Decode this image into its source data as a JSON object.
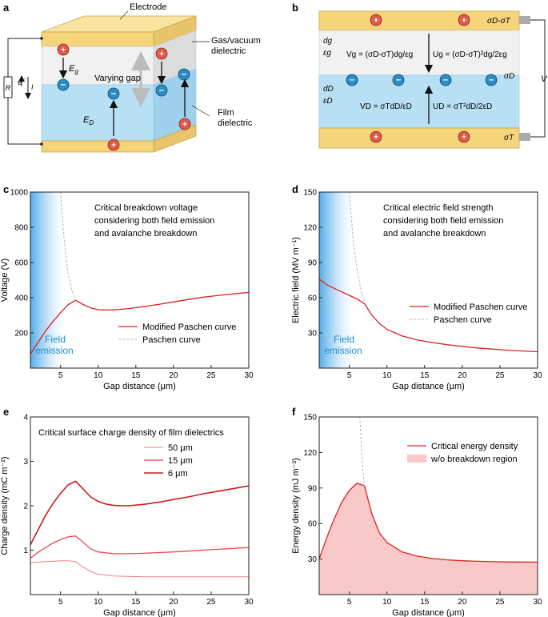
{
  "panel_labels": [
    "a",
    "b",
    "c",
    "d",
    "e",
    "f"
  ],
  "diagram_a": {
    "electrode": "Electrode",
    "gas_dielectric": [
      "Gas/vacuum",
      "dielectric"
    ],
    "film_dielectric": [
      "Film",
      "dielectric"
    ],
    "varying_gap": "Varying gap",
    "e_gas": "E",
    "e_gas_sub": "g",
    "e_film": "E",
    "e_film_sub": "D",
    "resistor": "R",
    "electron": "e",
    "current": "I"
  },
  "diagram_b": {
    "sigma_top": "σD-σT",
    "sigma_mid": "σD",
    "sigma_bot": "σT",
    "d_g": "dg",
    "eps_g": "εg",
    "d_D": "dD",
    "eps_D": "εD",
    "v_g": "Vg = (σD-σT)dg/εg",
    "u_g": "Ug = (σD-σT)²dg/2εg",
    "v_D": "VD = σTdD/εD",
    "u_D": "UD = σT²dD/2εD",
    "v_ext": "V"
  },
  "colors": {
    "electrode": "#f5d47a",
    "gas": "#ececec",
    "film": "#b8e0f5",
    "pos_charge": "#e05a4a",
    "neg_charge": "#2c8cc4",
    "curve": "#e02020",
    "paschen": "#b8b8b8",
    "field_emission": "#1a8fd0",
    "safe_region": "#f9c9c9"
  },
  "chart_data": [
    {
      "type": "line",
      "panel": "c",
      "title": [
        "Critical breakdown voltage",
        "considering both field emission",
        "and avalanche breakdown"
      ],
      "xlabel": "Gap distance (μm)",
      "ylabel": "Voltage (V)",
      "xlim": [
        1,
        30
      ],
      "ylim": [
        0,
        1000
      ],
      "xticks": [
        5,
        10,
        15,
        20,
        25,
        30
      ],
      "yticks": [
        200,
        400,
        600,
        800,
        1000
      ],
      "yticklabels": [
        "200",
        "400",
        "600",
        "800",
        "1000"
      ],
      "region_label": [
        "Field",
        "emission"
      ],
      "series": [
        {
          "name": "Modified Paschen curve",
          "style": "solid",
          "x": [
            1,
            2,
            3,
            4,
            5,
            6,
            7,
            8,
            9,
            10,
            11,
            12,
            13,
            14,
            16,
            18,
            20,
            22,
            24,
            26,
            28,
            30
          ],
          "y": [
            80,
            145,
            210,
            265,
            315,
            360,
            385,
            362,
            342,
            332,
            330,
            331,
            334,
            338,
            349,
            362,
            376,
            390,
            403,
            413,
            422,
            430
          ]
        },
        {
          "name": "Paschen curve",
          "style": "dashed",
          "x": [
            5,
            5.5,
            6,
            6.5,
            7
          ],
          "y": [
            1000,
            720,
            540,
            440,
            385
          ]
        }
      ]
    },
    {
      "type": "line",
      "panel": "d",
      "title": [
        "Critical electric field strength",
        "considering both field emission",
        "and avalanche breakdown"
      ],
      "xlabel": "Gap distance (μm)",
      "ylabel": "Electric field (MV m⁻¹)",
      "xlim": [
        1,
        30
      ],
      "ylim": [
        0,
        150
      ],
      "xticks": [
        5,
        10,
        15,
        20,
        25,
        30
      ],
      "yticks": [
        30,
        60,
        90,
        120,
        150
      ],
      "yticklabels": [
        "30",
        "60",
        "90",
        "120",
        "150"
      ],
      "region_label": [
        "Field",
        "emission"
      ],
      "series": [
        {
          "name": "Modified Paschen curve",
          "style": "solid",
          "x": [
            1,
            2,
            3,
            4,
            5,
            6,
            7,
            8,
            9,
            10,
            12,
            14,
            16,
            18,
            20,
            22,
            24,
            26,
            28,
            30
          ],
          "y": [
            76,
            71,
            68,
            65,
            62,
            59,
            55,
            45,
            38,
            33,
            27.5,
            24,
            21.8,
            20,
            18.5,
            17.2,
            16.2,
            15.3,
            14.6,
            14
          ]
        },
        {
          "name": "Paschen curve",
          "style": "dashed",
          "x": [
            5,
            5.5,
            6,
            6.5,
            7
          ],
          "y": [
            150,
            110,
            85,
            68,
            57
          ]
        }
      ]
    },
    {
      "type": "line",
      "panel": "e",
      "title": [
        "Critical surface charge density of film dielectrics"
      ],
      "xlabel": "Gap distance (μm)",
      "ylabel": "Charge density (mC m⁻²)",
      "xlim": [
        1,
        30
      ],
      "ylim": [
        0,
        4
      ],
      "xticks": [
        5,
        10,
        15,
        20,
        25,
        30
      ],
      "yticks": [
        1,
        2,
        3,
        4
      ],
      "yticklabels": [
        "1",
        "2",
        "3",
        "4"
      ],
      "series": [
        {
          "name": "50 μm",
          "style": "solid",
          "color": "#f08080",
          "width": 1,
          "x": [
            1,
            2,
            3,
            4,
            5,
            6,
            7,
            8,
            9,
            10,
            12,
            14,
            16,
            20,
            25,
            30
          ],
          "y": [
            0.72,
            0.73,
            0.74,
            0.75,
            0.76,
            0.76,
            0.74,
            0.62,
            0.52,
            0.46,
            0.42,
            0.41,
            0.4,
            0.4,
            0.4,
            0.4
          ]
        },
        {
          "name": "15 μm",
          "style": "solid",
          "color": "#e84a4a",
          "width": 1.3,
          "x": [
            1,
            2,
            3,
            4,
            5,
            6,
            7,
            8,
            9,
            10,
            12,
            14,
            16,
            20,
            25,
            30
          ],
          "y": [
            0.82,
            0.95,
            1.06,
            1.16,
            1.24,
            1.3,
            1.32,
            1.18,
            1.03,
            0.96,
            0.92,
            0.92,
            0.93,
            0.96,
            1.01,
            1.06
          ]
        },
        {
          "name": "6 μm",
          "style": "solid",
          "color": "#d01818",
          "width": 1.6,
          "x": [
            1,
            2,
            3,
            4,
            5,
            6,
            7,
            8,
            9,
            10,
            11,
            12,
            13,
            14,
            16,
            18,
            20,
            22,
            24,
            26,
            28,
            30
          ],
          "y": [
            1.12,
            1.45,
            1.78,
            2.05,
            2.28,
            2.47,
            2.55,
            2.38,
            2.2,
            2.1,
            2.04,
            2.01,
            2.0,
            2.0,
            2.03,
            2.08,
            2.14,
            2.2,
            2.27,
            2.33,
            2.39,
            2.45
          ]
        }
      ]
    },
    {
      "type": "area",
      "panel": "f",
      "title": [],
      "xlabel": "Gap distance (μm)",
      "ylabel": "Energy density (mJ m⁻³)",
      "xlim": [
        1,
        30
      ],
      "ylim": [
        0,
        150
      ],
      "xticks": [
        5,
        10,
        15,
        20,
        25,
        30
      ],
      "yticks": [
        30,
        60,
        90,
        120,
        150
      ],
      "yticklabels": [
        "30",
        "60",
        "90",
        "120",
        "150"
      ],
      "series": [
        {
          "name": "Critical energy density",
          "style": "solid",
          "x": [
            1,
            2,
            3,
            4,
            5,
            6,
            7,
            8,
            9,
            10,
            12,
            14,
            16,
            18,
            20,
            22,
            24,
            26,
            28,
            30
          ],
          "y": [
            30,
            48,
            64,
            78,
            88,
            94,
            92,
            68,
            52,
            44,
            36,
            32.5,
            30.5,
            29.3,
            28.6,
            28.1,
            27.8,
            27.6,
            27.5,
            27.4
          ]
        },
        {
          "name": "Paschen curve",
          "style": "dashed",
          "legend": false,
          "x": [
            6.4,
            6.6,
            6.8,
            7
          ],
          "y": [
            150,
            125,
            105,
            92
          ]
        }
      ],
      "fill_label": "w/o breakdown region"
    }
  ]
}
